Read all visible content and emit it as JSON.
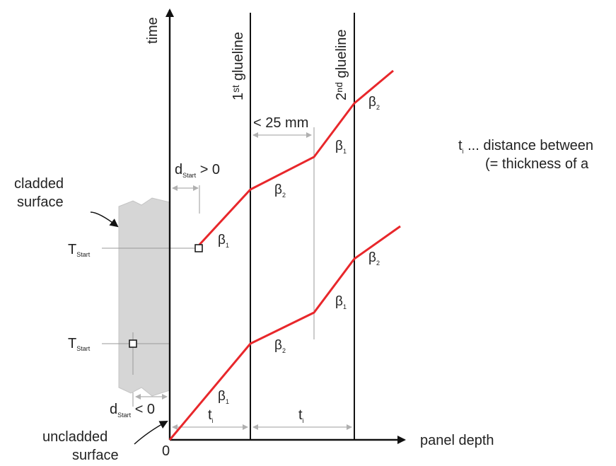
{
  "colors": {
    "curve": "#e8272b",
    "axis": "#111111",
    "guide": "#9a9a9a",
    "cladding": "#d6d6d6"
  },
  "axes": {
    "y_label": "time",
    "x_label": "panel depth",
    "origin_label": "0"
  },
  "gluelines": {
    "first_label": "1ˢᵗ glueline",
    "second_label": "2ⁿᵈ glueline"
  },
  "dimensions": {
    "lt25": "< 25 mm",
    "d_start_pos_main": "d",
    "d_start_pos_sub": "Start",
    "d_start_pos_rel": " > 0",
    "d_start_neg_main": "d",
    "d_start_neg_sub": "Start",
    "d_start_neg_rel": " < 0",
    "t_main": "t",
    "t_sub": "i"
  },
  "surfaces": {
    "cladded_line1": "cladded",
    "cladded_line2": "surface",
    "uncladded_line1": "uncladded",
    "uncladded_line2": "surface"
  },
  "markers": {
    "t_start_main": "T",
    "t_start_sub": "Start"
  },
  "betas": {
    "b1": "β",
    "b1_sub": "1",
    "b2": "β",
    "b2_sub": "2"
  },
  "note": {
    "line1_main": "t",
    "line1_sub": "i",
    "line1_rest": " ... distance between",
    "line2": "(= thickness of a"
  }
}
